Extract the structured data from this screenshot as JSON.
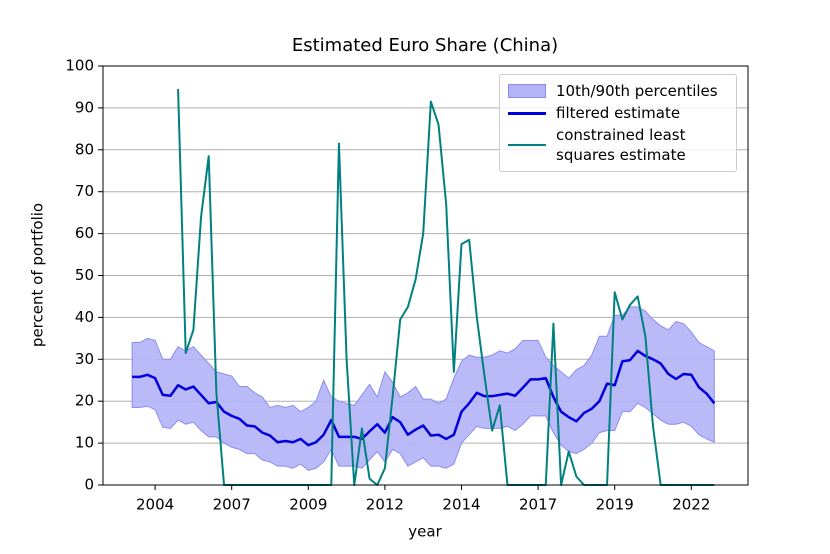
{
  "chart_data": {
    "type": "line",
    "title": "Estimated Euro Share (China)",
    "xlabel": "year",
    "ylabel": "percent of portfolio",
    "x": [
      2003.75,
      2004,
      2004.25,
      2004.5,
      2004.75,
      2005,
      2005.25,
      2005.5,
      2005.75,
      2006,
      2006.25,
      2006.5,
      2006.75,
      2007,
      2007.25,
      2007.5,
      2007.75,
      2008,
      2008.25,
      2008.5,
      2008.75,
      2009,
      2009.25,
      2009.5,
      2009.75,
      2010,
      2010.25,
      2010.5,
      2010.75,
      2011,
      2011.25,
      2011.5,
      2011.75,
      2012,
      2012.25,
      2012.5,
      2012.75,
      2013,
      2013.25,
      2013.5,
      2013.75,
      2014,
      2014.25,
      2014.5,
      2014.75,
      2015,
      2015.25,
      2015.5,
      2015.75,
      2016,
      2016.25,
      2016.5,
      2016.75,
      2017,
      2017.25,
      2017.5,
      2017.75,
      2018,
      2018.25,
      2018.5,
      2018.75,
      2019,
      2019.25,
      2019.5,
      2019.75,
      2020,
      2020.25,
      2020.5,
      2020.75,
      2021,
      2021.25,
      2021.5,
      2021.75,
      2022,
      2022.25,
      2022.5,
      2022.75
    ],
    "series": [
      {
        "name": "10th/90th percentiles",
        "color": "#b3b3f7",
        "edge": "#8c8cf0",
        "lower": [
          18.5,
          18.5,
          18.8,
          18,
          13.8,
          13.5,
          15.5,
          14.5,
          15,
          13,
          11.5,
          11.5,
          10,
          9,
          8.5,
          7.5,
          7.5,
          6,
          5.5,
          4.5,
          4.5,
          4,
          5,
          3.5,
          4,
          5.5,
          8.5,
          4.5,
          4.5,
          4.5,
          4,
          6,
          8,
          5.5,
          8.5,
          7.5,
          4.5,
          5.5,
          6.5,
          4.5,
          4.5,
          4,
          5,
          10,
          12,
          14,
          13.5,
          13.5,
          13.5,
          14,
          13,
          14.5,
          16.5,
          16.5,
          16.5,
          12.5,
          9.5,
          8,
          7.5,
          8.5,
          10,
          12.5,
          13,
          13,
          17.5,
          17.5,
          19.5,
          18.5,
          17,
          15.5,
          14.5,
          14.5,
          15,
          14,
          12,
          11,
          10.2
        ],
        "upper": [
          34,
          34,
          35,
          34.5,
          30,
          30,
          33,
          32,
          33,
          31,
          29,
          27,
          26.5,
          26,
          23.5,
          23.5,
          22,
          21,
          18.5,
          19,
          18.5,
          19,
          17.5,
          18.5,
          20,
          25,
          21,
          20,
          19.5,
          19,
          21.5,
          24,
          21,
          27,
          24.5,
          21,
          22,
          23.5,
          20.5,
          20.5,
          19.5,
          20.5,
          25.5,
          29.5,
          31,
          30.5,
          30.5,
          31,
          32,
          31.5,
          32.5,
          34.5,
          34.5,
          34.5,
          30.5,
          28.5,
          27,
          25.5,
          27.5,
          28.5,
          31,
          35.5,
          35.5,
          40.5,
          40.5,
          42.5,
          42.5,
          41.5,
          39.5,
          38,
          37,
          39,
          38.5,
          36.5,
          34,
          33,
          32
        ]
      },
      {
        "name": "filtered estimate",
        "color": "#0000dd",
        "values": [
          25.8,
          25.8,
          26.3,
          25.5,
          21.5,
          21.3,
          23.8,
          22.8,
          23.5,
          21.5,
          19.5,
          19.8,
          17.5,
          16.5,
          15.8,
          14.2,
          14.0,
          12.5,
          11.8,
          10.2,
          10.5,
          10.2,
          11.0,
          9.5,
          10.2,
          12.0,
          15.5,
          11.5,
          11.5,
          11.5,
          11.0,
          12.8,
          14.5,
          12.5,
          16.2,
          15.0,
          12.0,
          13.2,
          14.2,
          11.8,
          12.0,
          11.0,
          12.0,
          17.5,
          19.5,
          22.0,
          21.2,
          21.2,
          21.5,
          21.8,
          21.3,
          23.2,
          25.2,
          25.2,
          25.5,
          21.0,
          17.5,
          16.2,
          15.2,
          17.2,
          18.2,
          20.0,
          24.2,
          23.8,
          29.5,
          29.8,
          32.0,
          30.8,
          30.0,
          29.0,
          26.5,
          25.3,
          26.5,
          26.3,
          23.3,
          21.8,
          19.5
        ]
      },
      {
        "name": "constrained least squares estimate",
        "color": "#008080",
        "values": [
          null,
          null,
          null,
          null,
          null,
          null,
          94.5,
          31.5,
          37,
          64,
          78.5,
          22,
          0,
          0,
          0,
          0,
          0,
          0,
          0,
          0,
          0,
          0,
          0,
          0,
          0,
          0,
          0,
          81.5,
          30,
          0,
          13.5,
          1.5,
          0,
          4,
          21,
          39.5,
          42.5,
          49,
          60,
          91.5,
          86,
          67,
          27,
          57.5,
          58.5,
          40,
          26,
          13,
          19,
          0,
          0,
          0,
          0,
          0,
          0,
          38.5,
          0,
          8,
          2,
          0,
          0,
          0,
          0,
          46,
          39.5,
          43,
          45,
          35.5,
          14,
          0,
          0,
          0,
          0,
          0,
          0,
          0,
          0
        ]
      }
    ],
    "xlim": [
      2002.8,
      2023.85
    ],
    "ylim": [
      0,
      100
    ],
    "xticks": [
      {
        "value": 2004.5,
        "label": "2004"
      },
      2007,
      {
        "value": 2009.5,
        "label": "2009"
      },
      2012,
      {
        "value": 2014.5,
        "label": "2014"
      },
      2017,
      {
        "value": 2019.5,
        "label": "2019"
      },
      2022
    ],
    "yticks": [
      0,
      10,
      20,
      30,
      40,
      50,
      60,
      70,
      80,
      90,
      100
    ],
    "grid": "y",
    "legend": "upper right"
  }
}
